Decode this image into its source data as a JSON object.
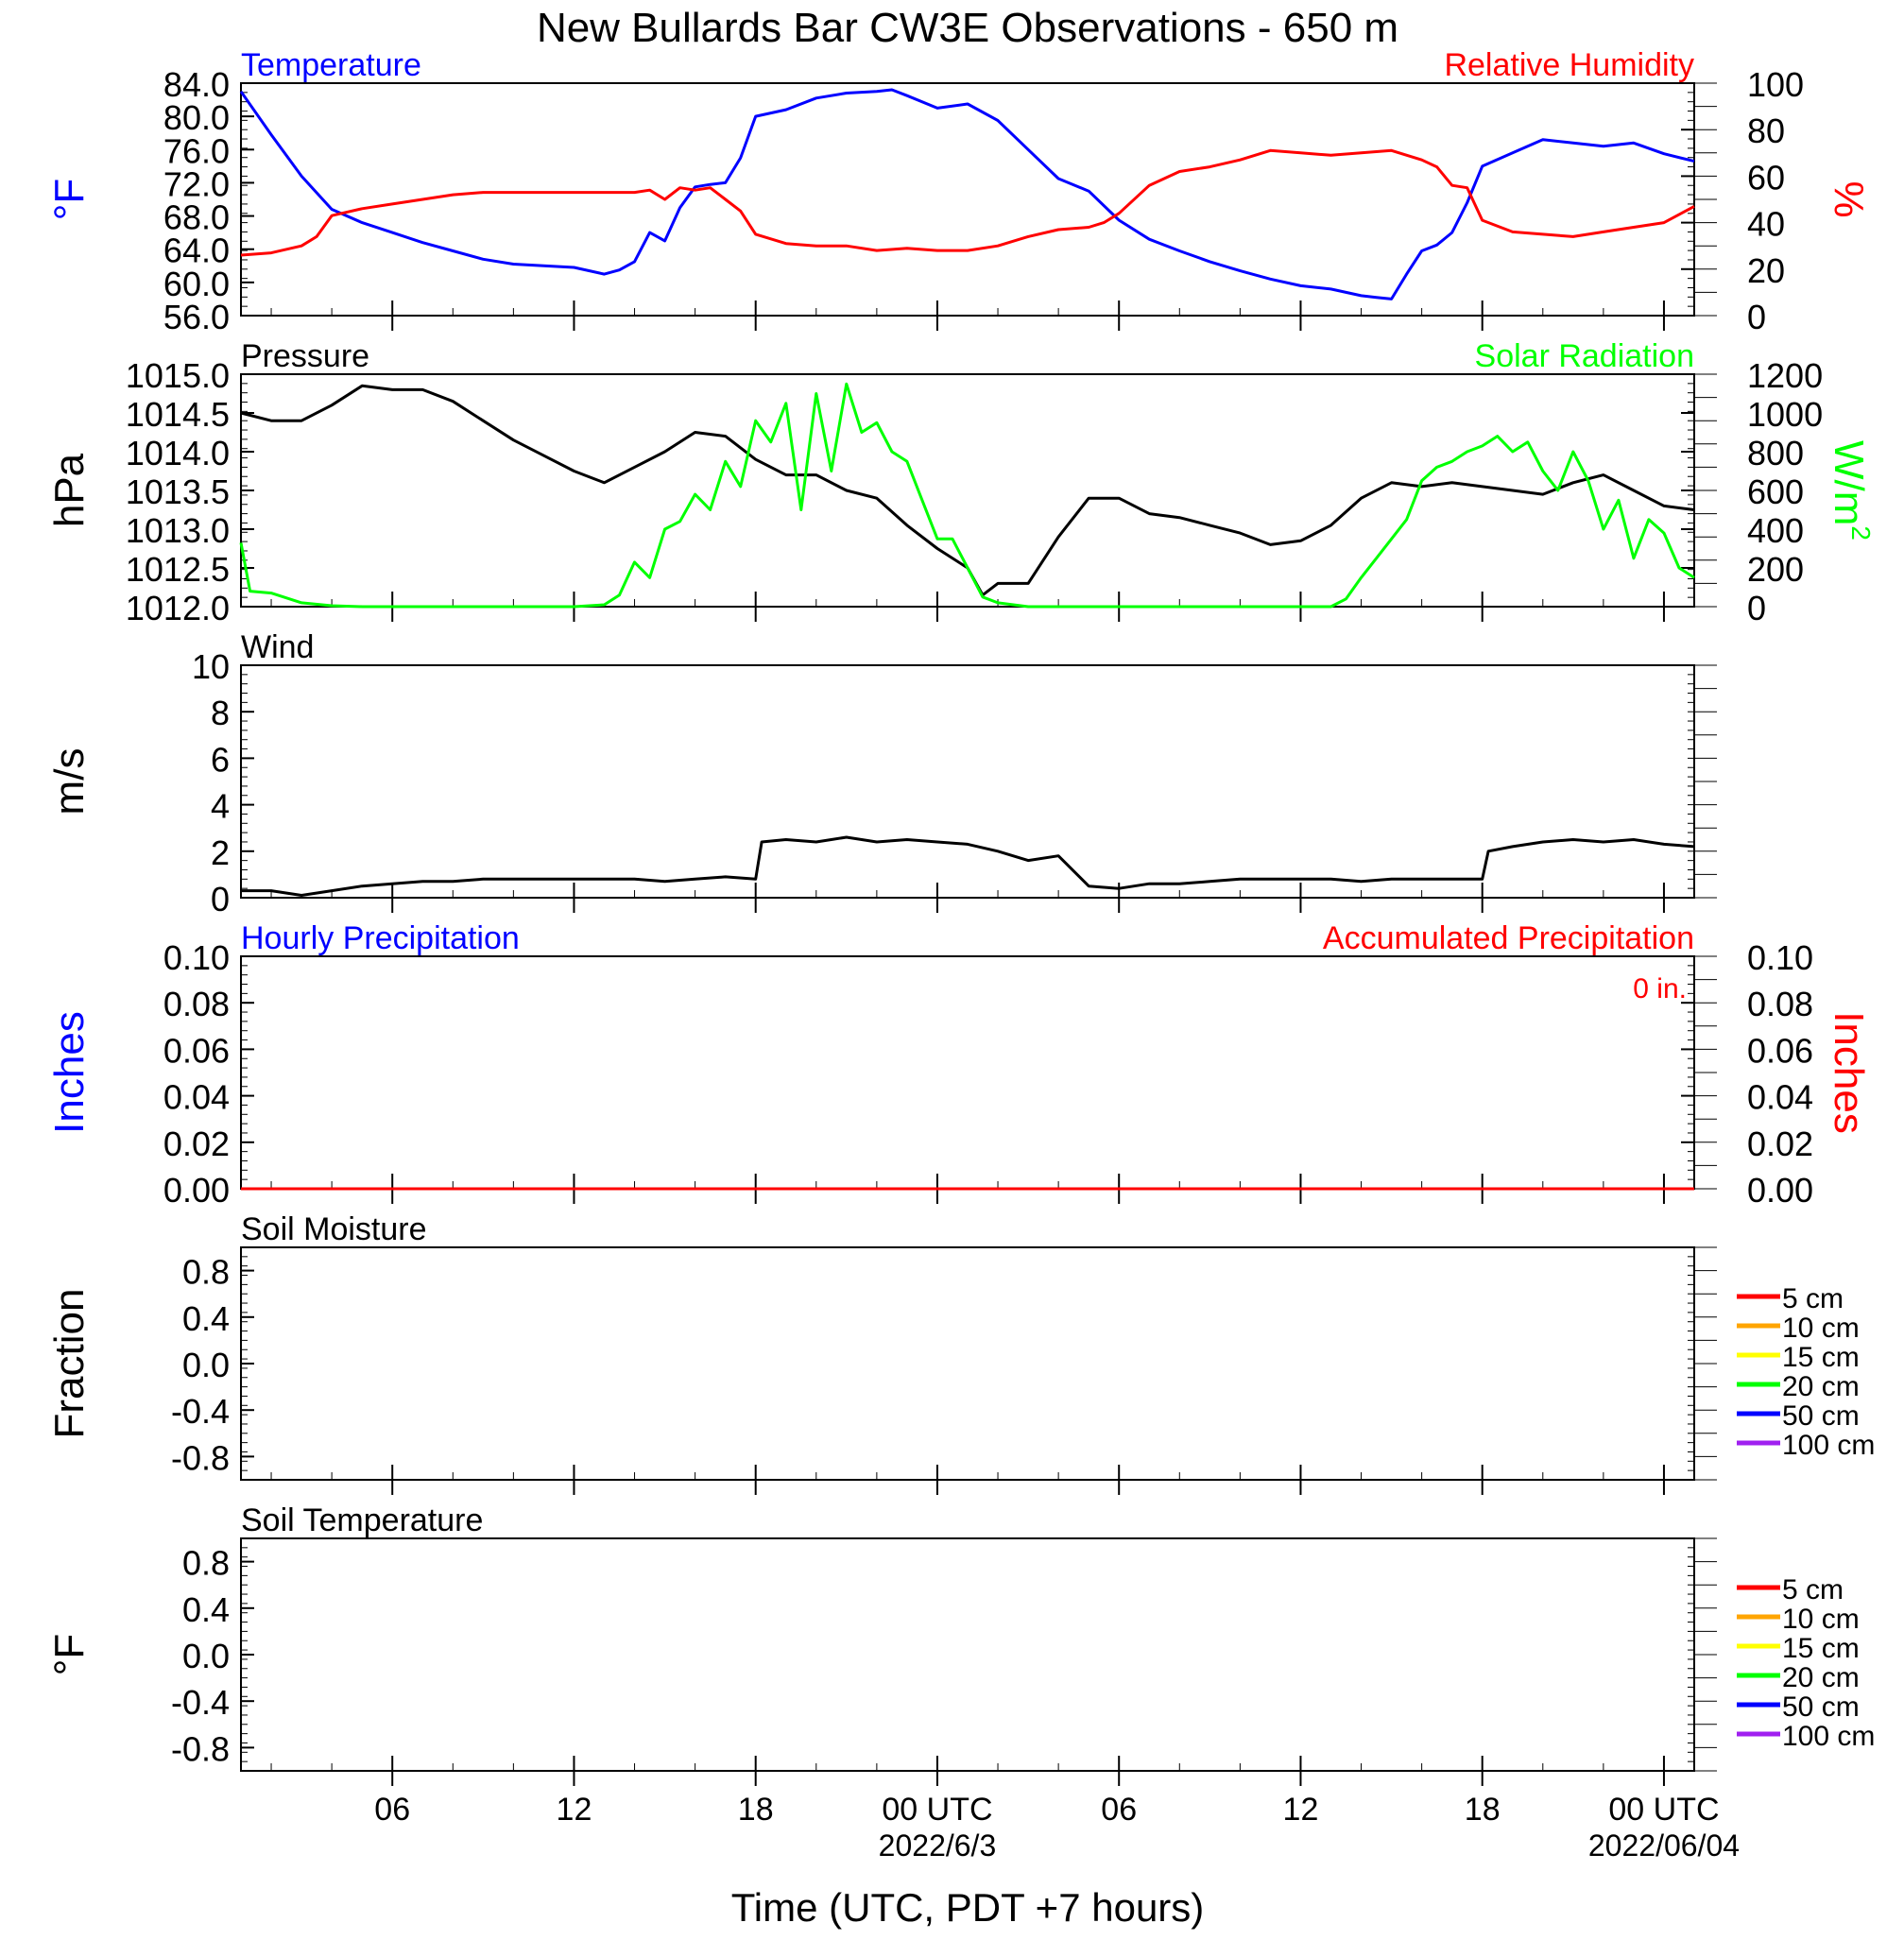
{
  "title": "New Bullards Bar CW3E Observations - 650 m",
  "xaxis": {
    "label": "Time (UTC, PDT +7 hours)",
    "tick_hours": [
      6,
      12,
      18,
      24,
      30,
      36,
      42,
      48
    ],
    "tick_labels": [
      "06",
      "12",
      "18",
      "00 UTC",
      "06",
      "12",
      "18",
      "00 UTC"
    ],
    "dates": [
      {
        "hour": 24,
        "label": "2022/6/3"
      },
      {
        "hour": 48,
        "label": "2022/06/04"
      }
    ],
    "range_hours": [
      1,
      49
    ]
  },
  "colors": {
    "temperature": "#0000ff",
    "humidity": "#ff0000",
    "pressure": "#000000",
    "solar": "#00ff00",
    "wind": "#000000",
    "barbs": "#ff0000",
    "precip_hourly": "#0000ff",
    "precip_accum": "#ff0000"
  },
  "panels": {
    "temp_rh": {
      "left_title": "Temperature",
      "right_title": "Relative Humidity",
      "left_unit": "°F",
      "right_unit": "%",
      "left_ticks": [
        "84.0",
        "80.0",
        "76.0",
        "72.0",
        "68.0",
        "64.0",
        "60.0",
        "56.0"
      ],
      "right_ticks": [
        "100",
        "80",
        "60",
        "40",
        "20",
        "0"
      ]
    },
    "press_solar": {
      "left_title": "Pressure",
      "right_title": "Solar Radiation",
      "left_unit": "hPa",
      "right_unit": "W/m",
      "right_unit_sup": "2",
      "left_ticks": [
        "1015.0",
        "1014.5",
        "1014.0",
        "1013.5",
        "1013.0",
        "1012.5",
        "1012.0"
      ],
      "right_ticks": [
        "1200",
        "1000",
        "800",
        "600",
        "400",
        "200",
        "0"
      ]
    },
    "wind": {
      "left_title": "Wind",
      "left_unit": "m/s",
      "left_ticks": [
        "10",
        "8",
        "6",
        "4",
        "2",
        "0"
      ]
    },
    "precip": {
      "left_title": "Hourly Precipitation",
      "right_title": "Accumulated Precipitation",
      "accum_label": "0 in.",
      "left_unit": "Inches",
      "right_unit": "Inches",
      "left_ticks": [
        "0.10",
        "0.08",
        "0.06",
        "0.04",
        "0.02",
        "0.00"
      ],
      "right_ticks": [
        "0.10",
        "0.08",
        "0.06",
        "0.04",
        "0.02",
        "0.00"
      ]
    },
    "soil_moisture": {
      "left_title": "Soil Moisture",
      "left_unit": "Fraction",
      "left_ticks": [
        "0.8",
        "0.4",
        "0.0",
        "-0.4",
        "-0.8"
      ],
      "legend": [
        {
          "label": "5 cm",
          "color": "#ff0000"
        },
        {
          "label": "10 cm",
          "color": "#ffa500"
        },
        {
          "label": "15 cm",
          "color": "#ffff00"
        },
        {
          "label": "20 cm",
          "color": "#00ff00"
        },
        {
          "label": "50 cm",
          "color": "#0000ff"
        },
        {
          "label": "100 cm",
          "color": "#a020f0"
        }
      ]
    },
    "soil_temp": {
      "left_title": "Soil Temperature",
      "left_unit": "°F",
      "left_ticks": [
        "0.8",
        "0.4",
        "0.0",
        "-0.4",
        "-0.8"
      ],
      "legend": [
        {
          "label": "5 cm",
          "color": "#ff0000"
        },
        {
          "label": "10 cm",
          "color": "#ffa500"
        },
        {
          "label": "15 cm",
          "color": "#ffff00"
        },
        {
          "label": "20 cm",
          "color": "#00ff00"
        },
        {
          "label": "50 cm",
          "color": "#0000ff"
        },
        {
          "label": "100 cm",
          "color": "#a020f0"
        }
      ]
    }
  },
  "chart_data": [
    {
      "type": "line",
      "title": "Temperature",
      "ylabel": "°F",
      "ylim": [
        56,
        84
      ],
      "x_unit": "hours since 2022-06-02 00 UTC",
      "series": [
        {
          "name": "Temperature",
          "x": [
            1,
            2,
            3,
            4,
            5,
            6,
            7,
            8,
            9,
            10,
            11,
            12,
            13,
            13.5,
            14,
            14.5,
            15,
            15.5,
            16,
            16.5,
            17,
            17.5,
            18,
            19,
            20,
            21,
            22,
            22.5,
            23,
            24,
            25,
            26,
            27,
            28,
            29,
            30,
            31,
            32,
            33,
            34,
            35,
            36,
            37,
            38,
            38.5,
            39,
            39.5,
            40,
            40.5,
            41,
            41.5,
            42,
            43,
            44,
            45,
            46,
            47,
            48,
            49
          ],
          "y": [
            83,
            77.8,
            72.8,
            68.8,
            67.2,
            66,
            64.8,
            63.8,
            62.8,
            62.2,
            62,
            61.8,
            61,
            61.5,
            62.5,
            66,
            65,
            69,
            71.5,
            71.8,
            72,
            75,
            80,
            80.8,
            82.2,
            82.8,
            83,
            83.2,
            82.5,
            81,
            81.5,
            79.5,
            76,
            72.5,
            71,
            67.5,
            65.2,
            63.8,
            62.5,
            61.4,
            60.4,
            59.6,
            59.2,
            58.4,
            58.2,
            58,
            61,
            63.8,
            64.5,
            66,
            69.6,
            74,
            75.6,
            77.2,
            76.8,
            76.4,
            76.8,
            75.5,
            74.6
          ]
        }
      ]
    },
    {
      "type": "line",
      "title": "Relative Humidity",
      "ylabel": "%",
      "ylim": [
        0,
        100
      ],
      "x_unit": "hours since 2022-06-02 00 UTC",
      "series": [
        {
          "name": "Relative Humidity",
          "x": [
            1,
            2,
            3,
            3.5,
            4,
            5,
            6,
            7,
            8,
            9,
            10,
            11,
            12,
            13,
            14,
            14.5,
            15,
            15.5,
            16,
            16.5,
            17,
            17.5,
            18,
            19,
            20,
            21,
            22,
            23,
            24,
            25,
            26,
            27,
            28,
            29,
            29.5,
            30,
            31,
            32,
            33,
            34,
            35,
            36,
            37,
            38,
            39,
            40,
            40.5,
            41,
            41.5,
            42,
            43,
            44,
            45,
            46,
            47,
            48,
            49
          ],
          "y": [
            26,
            27,
            30,
            34,
            43,
            46,
            48,
            50,
            52,
            53,
            53,
            53,
            53,
            53,
            53,
            54,
            50,
            55,
            54,
            55,
            50,
            45,
            35,
            31,
            30,
            30,
            28,
            29,
            28,
            28,
            30,
            34,
            37,
            38,
            40,
            44,
            56,
            62,
            64,
            67,
            71,
            70,
            69,
            70,
            71,
            67,
            64,
            56,
            55,
            41,
            36,
            35,
            34,
            36,
            38,
            40,
            47
          ]
        }
      ]
    },
    {
      "type": "line",
      "title": "Pressure",
      "ylabel": "hPa",
      "ylim": [
        1012,
        1015
      ],
      "x_unit": "hours since 2022-06-02 00 UTC",
      "series": [
        {
          "name": "Pressure",
          "x": [
            1,
            2,
            3,
            4,
            5,
            6,
            7,
            8,
            9,
            10,
            11,
            12,
            13,
            14,
            15,
            16,
            17,
            18,
            19,
            20,
            21,
            22,
            23,
            24,
            25,
            25.5,
            26,
            27,
            28,
            29,
            30,
            31,
            32,
            33,
            34,
            35,
            36,
            37,
            38,
            39,
            40,
            41,
            42,
            43,
            44,
            45,
            46,
            47,
            48,
            49
          ],
          "y": [
            1014.5,
            1014.4,
            1014.4,
            1014.6,
            1014.85,
            1014.8,
            1014.8,
            1014.65,
            1014.4,
            1014.15,
            1013.95,
            1013.75,
            1013.6,
            1013.8,
            1014,
            1014.25,
            1014.2,
            1013.9,
            1013.7,
            1013.7,
            1013.5,
            1013.4,
            1013.05,
            1012.75,
            1012.5,
            1012.15,
            1012.3,
            1012.3,
            1012.9,
            1013.4,
            1013.4,
            1013.2,
            1013.15,
            1013.05,
            1012.95,
            1012.8,
            1012.85,
            1013.05,
            1013.4,
            1013.6,
            1013.55,
            1013.6,
            1013.55,
            1013.5,
            1013.45,
            1013.6,
            1013.7,
            1013.5,
            1013.3,
            1013.25
          ]
        }
      ]
    },
    {
      "type": "line",
      "title": "Solar Radiation",
      "ylabel": "W/m2",
      "ylim": [
        0,
        1200
      ],
      "x_unit": "hours since 2022-06-02 00 UTC",
      "series": [
        {
          "name": "Solar Radiation",
          "x": [
            1,
            1.3,
            2,
            3,
            4,
            5,
            6,
            7,
            8,
            9,
            10,
            11,
            12,
            13,
            13.5,
            14,
            14.5,
            15,
            15.5,
            16,
            16.5,
            17,
            17.5,
            18,
            18.5,
            19,
            19.5,
            20,
            20.5,
            21,
            21.5,
            22,
            22.5,
            23,
            23.5,
            24,
            24.5,
            25,
            25.5,
            26,
            27,
            28,
            29,
            30,
            31,
            32,
            33,
            34,
            35,
            36,
            37,
            37.5,
            38,
            38.5,
            39,
            39.5,
            40,
            40.5,
            41,
            41.5,
            42,
            42.5,
            43,
            43.5,
            44,
            44.5,
            45,
            45.5,
            46,
            46.5,
            47,
            47.5,
            48,
            48.5,
            49
          ],
          "y": [
            330,
            80,
            70,
            20,
            5,
            0,
            0,
            0,
            0,
            0,
            0,
            0,
            0,
            10,
            60,
            230,
            150,
            400,
            440,
            580,
            500,
            750,
            620,
            960,
            850,
            1050,
            500,
            1100,
            700,
            1150,
            900,
            950,
            800,
            750,
            550,
            350,
            350,
            200,
            50,
            20,
            0,
            0,
            0,
            0,
            0,
            0,
            0,
            0,
            0,
            0,
            0,
            40,
            150,
            250,
            350,
            450,
            650,
            720,
            750,
            800,
            830,
            880,
            800,
            850,
            700,
            600,
            800,
            650,
            400,
            550,
            250,
            450,
            380,
            200,
            150
          ]
        }
      ]
    },
    {
      "type": "line",
      "title": "Wind",
      "ylabel": "m/s",
      "ylim": [
        0,
        10
      ],
      "x_unit": "hours since 2022-06-02 00 UTC",
      "series": [
        {
          "name": "Wind",
          "x": [
            1,
            2,
            3,
            4,
            5,
            6,
            7,
            8,
            9,
            10,
            11,
            12,
            13,
            14,
            15,
            16,
            17,
            18,
            18.2,
            19,
            20,
            21,
            22,
            23,
            24,
            25,
            26,
            27,
            28,
            29,
            30,
            31,
            32,
            33,
            34,
            35,
            36,
            37,
            38,
            39,
            40,
            41,
            42,
            42.2,
            43,
            44,
            45,
            46,
            47,
            48,
            49
          ],
          "y": [
            0.3,
            0.3,
            0.1,
            0.3,
            0.5,
            0.6,
            0.7,
            0.7,
            0.8,
            0.8,
            0.8,
            0.8,
            0.8,
            0.8,
            0.7,
            0.8,
            0.9,
            0.8,
            2.4,
            2.5,
            2.4,
            2.6,
            2.4,
            2.5,
            2.4,
            2.3,
            2.0,
            1.6,
            1.8,
            0.5,
            0.4,
            0.6,
            0.6,
            0.7,
            0.8,
            0.8,
            0.8,
            0.8,
            0.7,
            0.8,
            0.8,
            0.8,
            0.8,
            2.0,
            2.2,
            2.4,
            2.5,
            2.4,
            2.5,
            2.3,
            2.2
          ]
        }
      ]
    },
    {
      "type": "line",
      "title": "Hourly Precipitation",
      "ylabel": "Inches",
      "ylim": [
        0,
        0.1
      ],
      "x_unit": "hours since 2022-06-02 00 UTC",
      "series": [
        {
          "name": "Hourly Precipitation",
          "x": [
            1,
            49
          ],
          "y": [
            0,
            0
          ]
        },
        {
          "name": "Accumulated Precipitation",
          "x": [
            1,
            49
          ],
          "y": [
            0,
            0
          ]
        }
      ]
    },
    {
      "type": "line",
      "title": "Soil Moisture",
      "ylabel": "Fraction",
      "ylim": [
        -1,
        1
      ],
      "series": []
    },
    {
      "type": "line",
      "title": "Soil Temperature",
      "ylabel": "°F",
      "ylim": [
        -1,
        1
      ],
      "series": []
    }
  ]
}
